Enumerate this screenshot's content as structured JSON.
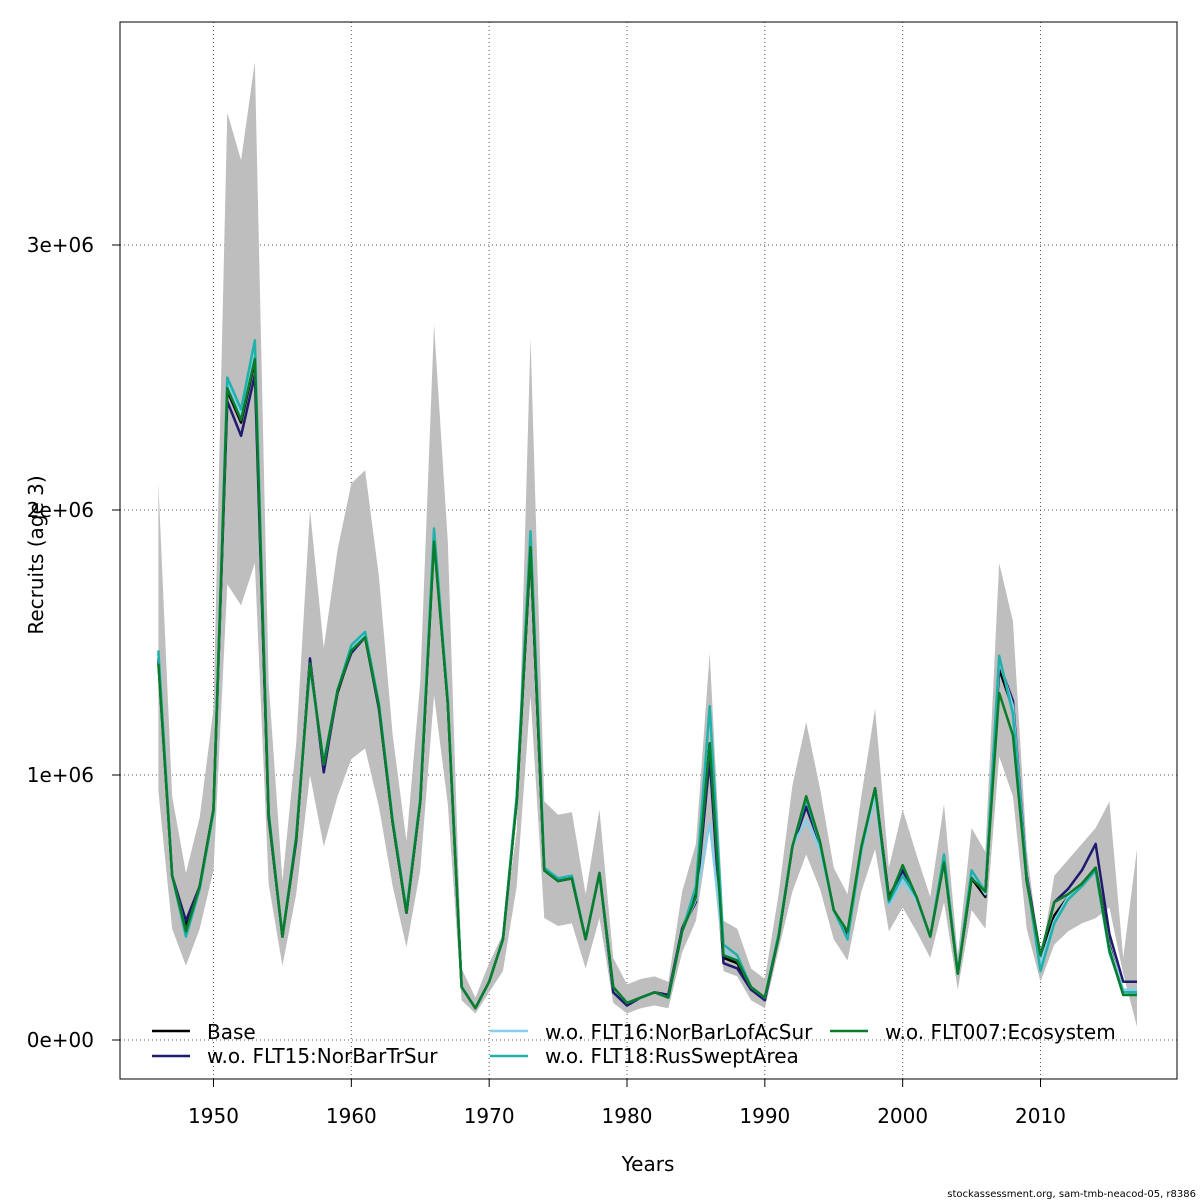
{
  "chart_data": {
    "type": "line",
    "xlabel": "Years",
    "ylabel": "Recruits (age 3)",
    "xlim": [
      1942.3,
      1919.0
    ],
    "ylim": [
      -150000,
      4000000
    ],
    "x_ticks": [
      1950,
      1960,
      1970,
      1980,
      1990,
      2000,
      2010
    ],
    "x_tick_labels": [
      "1950",
      "1960",
      "1970",
      "1980",
      "1990",
      "2000",
      "2010"
    ],
    "y_ticks": [
      0,
      1000000,
      2000000,
      3000000
    ],
    "y_tick_labels": [
      "0e+00",
      "1e+06",
      "2e+06",
      "3e+06"
    ],
    "grid": true,
    "legend_position": "bottom",
    "x": [
      1946,
      1947,
      1948,
      1949,
      1950,
      1951,
      1952,
      1953,
      1954,
      1955,
      1956,
      1957,
      1958,
      1959,
      1960,
      1961,
      1962,
      1963,
      1964,
      1965,
      1966,
      1967,
      1968,
      1969,
      1970,
      1971,
      1972,
      1973,
      1974,
      1975,
      1976,
      1977,
      1978,
      1979,
      1980,
      1981,
      1982,
      1983,
      1984,
      1985,
      1986,
      1987,
      1988,
      1989,
      1990,
      1991,
      1992,
      1993,
      1994,
      1995,
      1996,
      1997,
      1998,
      1999,
      2000,
      2001,
      2002,
      2003,
      2004,
      2005,
      2006,
      2007,
      2008,
      2009,
      2010,
      2011,
      2012,
      2013,
      2014,
      2015,
      2016,
      2017
    ],
    "band": {
      "upper": [
        2100000,
        920000,
        630000,
        840000,
        1250000,
        3500000,
        3320000,
        3690000,
        1350000,
        600000,
        1120000,
        2000000,
        1480000,
        1850000,
        2100000,
        2150000,
        1750000,
        1150000,
        750000,
        1350000,
        2700000,
        1880000,
        270000,
        160000,
        290000,
        400000,
        790000,
        2650000,
        900000,
        850000,
        860000,
        550000,
        870000,
        310000,
        210000,
        230000,
        240000,
        220000,
        560000,
        740000,
        1460000,
        450000,
        420000,
        270000,
        230000,
        550000,
        960000,
        1200000,
        950000,
        650000,
        550000,
        920000,
        1250000,
        650000,
        870000,
        700000,
        540000,
        890000,
        320000,
        800000,
        710000,
        1800000,
        1580000,
        720000,
        300000,
        620000,
        680000,
        740000,
        800000,
        900000,
        310000,
        720000
      ],
      "lower": [
        940000,
        420000,
        280000,
        420000,
        640000,
        1720000,
        1640000,
        1800000,
        590000,
        280000,
        550000,
        1000000,
        730000,
        920000,
        1060000,
        1100000,
        880000,
        580000,
        350000,
        640000,
        1300000,
        890000,
        150000,
        100000,
        180000,
        260000,
        580000,
        1300000,
        460000,
        430000,
        440000,
        270000,
        460000,
        140000,
        100000,
        120000,
        130000,
        120000,
        330000,
        450000,
        800000,
        260000,
        240000,
        150000,
        120000,
        340000,
        560000,
        700000,
        570000,
        380000,
        300000,
        560000,
        720000,
        410000,
        500000,
        410000,
        310000,
        520000,
        190000,
        490000,
        420000,
        1070000,
        920000,
        420000,
        220000,
        360000,
        410000,
        440000,
        460000,
        500000,
        250000,
        50000
      ]
    },
    "series": [
      {
        "name": "Base",
        "color": "#000000",
        "values": [
          1430000,
          620000,
          430000,
          580000,
          870000,
          2450000,
          2330000,
          2560000,
          850000,
          390000,
          760000,
          1430000,
          1030000,
          1310000,
          1470000,
          1520000,
          1260000,
          820000,
          480000,
          900000,
          1900000,
          1270000,
          200000,
          120000,
          220000,
          380000,
          910000,
          1850000,
          640000,
          600000,
          610000,
          380000,
          630000,
          200000,
          140000,
          160000,
          180000,
          170000,
          420000,
          550000,
          1120000,
          310000,
          290000,
          190000,
          160000,
          390000,
          730000,
          880000,
          740000,
          490000,
          400000,
          720000,
          950000,
          540000,
          640000,
          540000,
          390000,
          680000,
          250000,
          610000,
          540000,
          1400000,
          1250000,
          600000,
          310000,
          470000,
          540000,
          590000,
          650000,
          360000,
          180000,
          180000
        ]
      },
      {
        "name": "w.o. FLT15:NorBarTrSur",
        "color": "#1e1a6e",
        "values": [
          1440000,
          620000,
          450000,
          580000,
          870000,
          2410000,
          2280000,
          2510000,
          840000,
          390000,
          750000,
          1440000,
          1010000,
          1320000,
          1460000,
          1520000,
          1250000,
          820000,
          480000,
          900000,
          1890000,
          1270000,
          200000,
          120000,
          220000,
          380000,
          900000,
          1850000,
          640000,
          600000,
          610000,
          380000,
          630000,
          180000,
          130000,
          160000,
          180000,
          170000,
          420000,
          520000,
          1060000,
          290000,
          270000,
          190000,
          150000,
          390000,
          730000,
          880000,
          740000,
          490000,
          400000,
          720000,
          950000,
          530000,
          640000,
          540000,
          390000,
          680000,
          250000,
          620000,
          560000,
          1420000,
          1280000,
          620000,
          320000,
          520000,
          570000,
          640000,
          740000,
          400000,
          220000,
          220000
        ]
      },
      {
        "name": "w.o. FLT16:NorBarLofAcSur",
        "color": "#87ceeb",
        "values": [
          1460000,
          620000,
          410000,
          570000,
          860000,
          2480000,
          2360000,
          2610000,
          860000,
          390000,
          770000,
          1420000,
          1040000,
          1320000,
          1480000,
          1530000,
          1270000,
          830000,
          490000,
          910000,
          1920000,
          1280000,
          200000,
          120000,
          220000,
          380000,
          920000,
          1890000,
          650000,
          610000,
          620000,
          380000,
          630000,
          200000,
          140000,
          160000,
          180000,
          160000,
          410000,
          530000,
          820000,
          340000,
          300000,
          200000,
          160000,
          400000,
          730000,
          830000,
          720000,
          490000,
          380000,
          710000,
          920000,
          510000,
          600000,
          530000,
          390000,
          700000,
          250000,
          630000,
          550000,
          1430000,
          1260000,
          610000,
          290000,
          450000,
          540000,
          580000,
          640000,
          350000,
          190000,
          190000
        ]
      },
      {
        "name": "w.o. FLT18:RusSweptArea",
        "color": "#20b2aa",
        "values": [
          1470000,
          620000,
          390000,
          570000,
          860000,
          2500000,
          2380000,
          2640000,
          860000,
          390000,
          770000,
          1410000,
          1050000,
          1320000,
          1490000,
          1540000,
          1270000,
          830000,
          490000,
          910000,
          1930000,
          1280000,
          200000,
          120000,
          220000,
          380000,
          920000,
          1920000,
          650000,
          610000,
          620000,
          380000,
          630000,
          200000,
          140000,
          160000,
          180000,
          160000,
          410000,
          580000,
          1260000,
          360000,
          320000,
          200000,
          160000,
          400000,
          730000,
          910000,
          740000,
          490000,
          380000,
          720000,
          950000,
          520000,
          620000,
          540000,
          390000,
          700000,
          250000,
          640000,
          560000,
          1450000,
          1230000,
          610000,
          260000,
          440000,
          530000,
          580000,
          640000,
          330000,
          180000,
          180000
        ]
      },
      {
        "name": "w.o. FLT007:Ecosystem",
        "color": "#0a7d2c",
        "values": [
          1420000,
          620000,
          410000,
          580000,
          870000,
          2460000,
          2340000,
          2570000,
          850000,
          390000,
          760000,
          1420000,
          1040000,
          1320000,
          1470000,
          1520000,
          1260000,
          820000,
          480000,
          900000,
          1880000,
          1270000,
          200000,
          120000,
          220000,
          380000,
          900000,
          1860000,
          640000,
          600000,
          610000,
          380000,
          630000,
          200000,
          140000,
          160000,
          180000,
          160000,
          410000,
          540000,
          1120000,
          320000,
          300000,
          200000,
          160000,
          390000,
          730000,
          920000,
          750000,
          490000,
          410000,
          730000,
          950000,
          530000,
          660000,
          540000,
          390000,
          670000,
          250000,
          610000,
          560000,
          1310000,
          1150000,
          600000,
          320000,
          520000,
          550000,
          590000,
          650000,
          340000,
          170000,
          170000
        ]
      }
    ]
  },
  "legend": {
    "items": [
      {
        "label": "Base",
        "color": "#000000"
      },
      {
        "label": "w.o. FLT15:NorBarTrSur",
        "color": "#1e1a6e"
      },
      {
        "label": "w.o. FLT16:NorBarLofAcSur",
        "color": "#87ceeb"
      },
      {
        "label": "w.o. FLT18:RusSweptArea",
        "color": "#20b2aa"
      },
      {
        "label": "w.o. FLT007:Ecosystem",
        "color": "#0a7d2c"
      }
    ]
  },
  "footer": {
    "note": "stockassessment.org, sam-tmb-neacod-05, r8386"
  },
  "colors": {
    "band": "#bebebe",
    "grid": "#555555"
  }
}
